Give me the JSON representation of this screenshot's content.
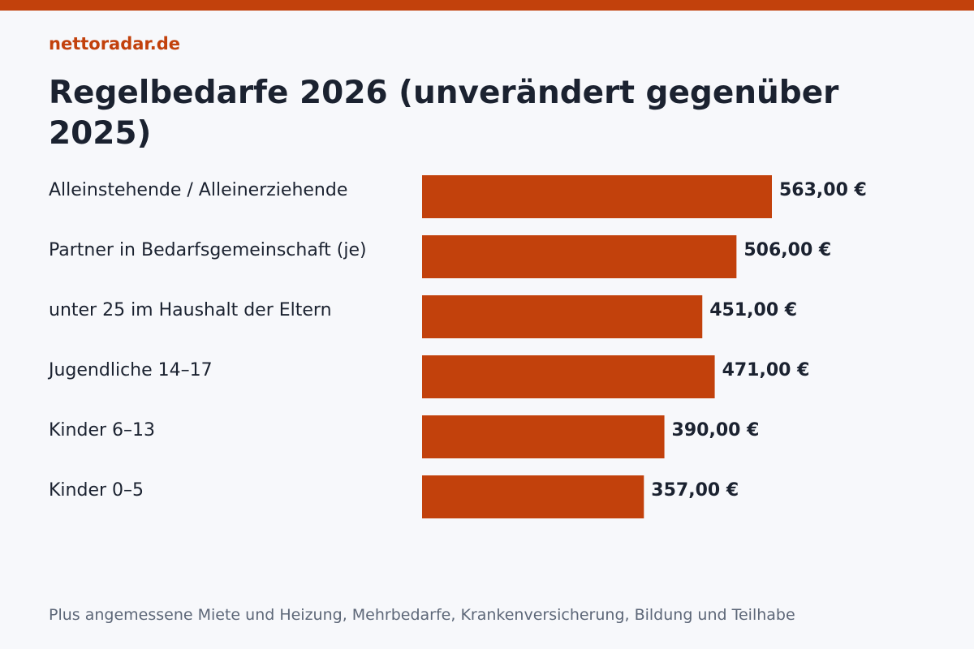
{
  "site": "nettoradar.de",
  "footnote": "Plus angemessene Miete und Heizung, Mehrbedarfe, Krankenversicherung, Bildung und Teilhabe",
  "colors": {
    "accent": "#c2410c",
    "text": "#1b2230",
    "muted": "#5d6778",
    "background": "#f7f8fb"
  },
  "chart_data": {
    "type": "bar",
    "orientation": "horizontal",
    "title": "Regelbedarfe 2026 (unverändert gegenüber 2025)",
    "categories": [
      "Alleinstehende / Alleinerziehende",
      "Partner in Bedarfsgemeinschaft (je)",
      "unter 25 im Haushalt der Eltern",
      "Jugendliche 14–17",
      "Kinder 6–13",
      "Kinder 0–5"
    ],
    "values": [
      563,
      506,
      451,
      471,
      390,
      357
    ],
    "value_labels": [
      "563,00 €",
      "506,00 €",
      "451,00 €",
      "471,00 €",
      "390,00 €",
      "357,00 €"
    ],
    "unit": "€",
    "xlim": [
      0,
      563
    ],
    "grid": false,
    "legend": "none"
  }
}
